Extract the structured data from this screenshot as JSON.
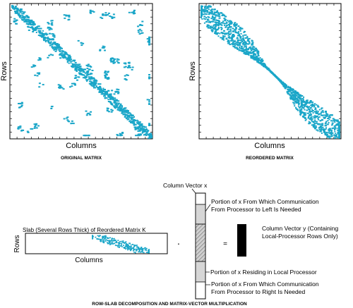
{
  "colors": {
    "sparsity": "#1aa6c8",
    "axis": "#000000",
    "shade_light": "#d6d6d6",
    "hatch": "#8a8a8a",
    "vector_y": "#000000"
  },
  "top_left": {
    "xlabel": "Columns",
    "ylabel": "Rows",
    "caption": "ORIGINAL MATRIX"
  },
  "top_right": {
    "xlabel": "Columns",
    "ylabel": "Rows",
    "caption": "REORDERED MATRIX"
  },
  "bottom": {
    "slab_label": "Slab (Several Rows Thick) of Reordered Matrix K",
    "slab_xlabel": "Columns",
    "slab_ylabel": "Rows",
    "dot": "·",
    "equals": "=",
    "column_vector_x": "Column Vector x",
    "portion_left_1": "Portion of x From Which Communication",
    "portion_left_2": "From Processor to Left Is Needed",
    "column_vector_y_1": "Column Vector y (Containing",
    "column_vector_y_2": "Local-Processor Rows Only)",
    "portion_local": "Portion of x Residing in Local Processor",
    "portion_right_1": "Portion of x From Which Communication",
    "portion_right_2": "From Processor to Right Is Needed",
    "caption": "ROW-SLAB DECOMPOSITION AND MATRIX-VECTOR MULTIPLICATION"
  }
}
